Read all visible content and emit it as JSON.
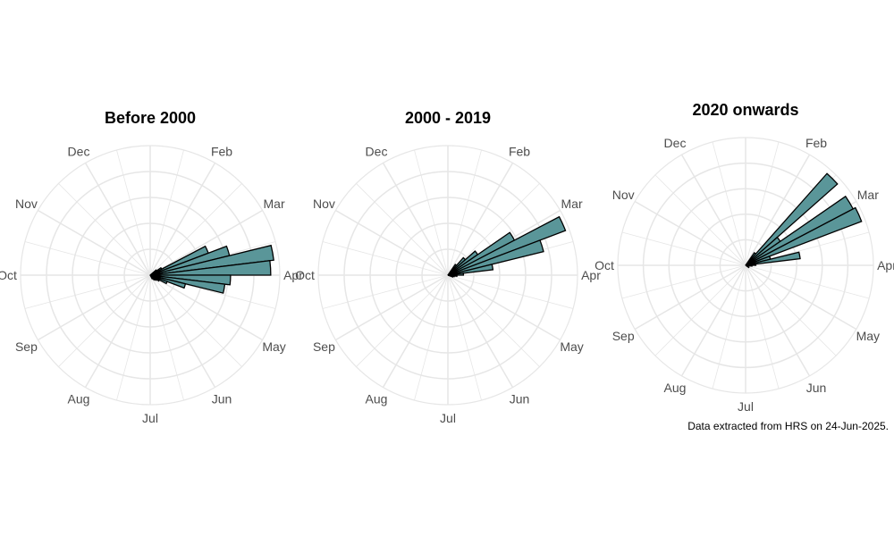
{
  "caption": "Data extracted from HRS on 24-Jun-2025.",
  "style": {
    "fill": "#5a9699",
    "stroke": "#000000",
    "grid": "#e6e6e6"
  },
  "months": [
    "Jan",
    "Feb",
    "Mar",
    "Apr",
    "May",
    "Jun",
    "Jul",
    "Aug",
    "Sep",
    "Oct",
    "Nov",
    "Dec"
  ],
  "chart_data": [
    {
      "type": "bar",
      "polar": true,
      "title": "Before 2000",
      "categories": [
        "Jan",
        "Feb",
        "Mar",
        "Apr",
        "May",
        "Jun",
        "Jul",
        "Aug",
        "Sep",
        "Oct",
        "Nov",
        "Dec"
      ],
      "week_bins": [
        {
          "week": 10,
          "value": 0.48
        },
        {
          "week": 11,
          "value": 0.63
        },
        {
          "week": 12,
          "value": 0.96
        },
        {
          "week": 13,
          "value": 0.93
        },
        {
          "week": 14,
          "value": 0.62
        },
        {
          "week": 15,
          "value": 0.58
        },
        {
          "week": 16,
          "value": 0.28
        },
        {
          "week": 17,
          "value": 0.14
        },
        {
          "week": 18,
          "value": 0.08
        },
        {
          "week": 19,
          "value": 0.06
        },
        {
          "week": 20,
          "value": 0.05
        },
        {
          "week": 21,
          "value": 0.04
        },
        {
          "week": 22,
          "value": 0.03
        },
        {
          "week": 8,
          "value": 0.06
        },
        {
          "week": 9,
          "value": 0.1
        }
      ],
      "grid": true
    },
    {
      "type": "bar",
      "polar": true,
      "title": "2000 - 2019",
      "categories": [
        "Jan",
        "Feb",
        "Mar",
        "Apr",
        "May",
        "Jun",
        "Jul",
        "Aug",
        "Sep",
        "Oct",
        "Nov",
        "Dec"
      ],
      "week_bins": [
        {
          "week": 6,
          "value": 0.1
        },
        {
          "week": 7,
          "value": 0.18
        },
        {
          "week": 8,
          "value": 0.28
        },
        {
          "week": 9,
          "value": 0.58
        },
        {
          "week": 10,
          "value": 0.97
        },
        {
          "week": 11,
          "value": 0.76
        },
        {
          "week": 12,
          "value": 0.35
        },
        {
          "week": 13,
          "value": 0.12
        },
        {
          "week": 14,
          "value": 0.07
        },
        {
          "week": 15,
          "value": 0.05
        },
        {
          "week": 16,
          "value": 0.04
        }
      ],
      "grid": true
    },
    {
      "type": "bar",
      "polar": true,
      "title": "2020 onwards",
      "categories": [
        "Jan",
        "Feb",
        "Mar",
        "Apr",
        "May",
        "Jun",
        "Jul",
        "Aug",
        "Sep",
        "Oct",
        "Nov",
        "Dec"
      ],
      "week_bins": [
        {
          "week": 6,
          "value": 0.12
        },
        {
          "week": 7,
          "value": 0.96
        },
        {
          "week": 8,
          "value": 0.33
        },
        {
          "week": 9,
          "value": 0.95
        },
        {
          "week": 10,
          "value": 0.97
        },
        {
          "week": 11,
          "value": 0.2
        },
        {
          "week": 12,
          "value": 0.43
        },
        {
          "week": 13,
          "value": 0.08
        },
        {
          "week": 14,
          "value": 0.05
        },
        {
          "week": 18,
          "value": 0.03
        }
      ],
      "grid": true
    }
  ]
}
